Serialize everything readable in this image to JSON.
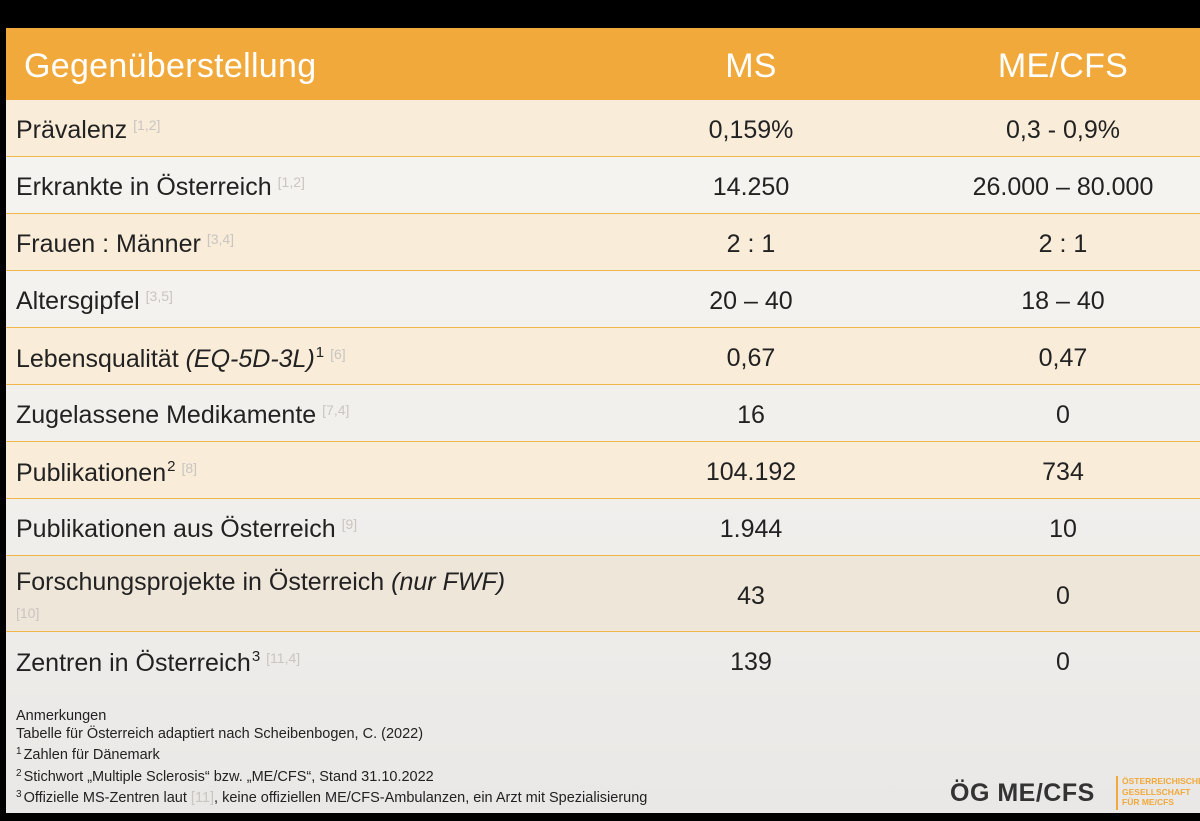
{
  "table": {
    "headers": {
      "title": "Gegenüberstellung",
      "ms": "MS",
      "mecfs": "ME/CFS"
    },
    "rows": [
      {
        "label": "Prävalenz",
        "ref": "[1,2]",
        "ms": "0,159%",
        "mecfs": "0,3 - 0,9%"
      },
      {
        "label": "Erkrankte in Österreich",
        "ref": "[1,2]",
        "ms": "14.250",
        "mecfs": "26.000 – 80.000"
      },
      {
        "label": "Frauen : Männer",
        "ref": "[3,4]",
        "ms": "2 : 1",
        "mecfs": "2 : 1"
      },
      {
        "label": "Altersgipfel",
        "ref": "[3,5]",
        "ms": "20 – 40",
        "mecfs": "18 – 40"
      },
      {
        "label": "Lebensqualität ",
        "label_italic": "(EQ-5D-3L)",
        "sup": "1",
        "ref": "[6]",
        "ms": "0,67",
        "mecfs": "0,47"
      },
      {
        "label": "Zugelassene Medikamente",
        "ref": "[7,4]",
        "ms": "16",
        "mecfs": "0"
      },
      {
        "label": "Publikationen",
        "sup": "2",
        "ref": "[8]",
        "ms": "104.192",
        "mecfs": "734"
      },
      {
        "label": "Publikationen aus Österreich",
        "ref": "[9]",
        "ms": "1.944",
        "mecfs": "10"
      },
      {
        "label": "Forschungsprojekte in Österreich ",
        "label_italic": "(nur FWF)",
        "ref": "[10]",
        "ms": "43",
        "mecfs": "0"
      },
      {
        "label": "Zentren in Österreich",
        "sup": "3",
        "ref": "[11,4]",
        "ms": "139",
        "mecfs": "0"
      }
    ]
  },
  "notes": {
    "heading": "Anmerkungen",
    "line1": "Tabelle für Österreich adaptiert nach Scheibenbogen, C. (2022)",
    "n1_mark": "1",
    "n1_text": "Zahlen für Dänemark",
    "n2_mark": "2",
    "n2_text": "Stichwort „Multiple Sclerosis“ bzw. „ME/CFS“, Stand 31.10.2022",
    "n3_mark": "3",
    "n3_text_a": "Offizielle MS-Zentren laut ",
    "n3_ref": "[11]",
    "n3_text_b": ", keine offiziellen ME/CFS-Ambulanzen, ein Arzt mit Spezialisierung"
  },
  "logo": {
    "main": "ÖG ME/CFS",
    "sub1": "ÖSTERREICHISCHE",
    "sub2": "GESELLSCHAFT",
    "sub3": "FÜR ME/CFS"
  },
  "colors": {
    "accent": "#f0a93a",
    "row_shade": "#f9ecd9",
    "ref_grey": "#c9c5c0"
  }
}
